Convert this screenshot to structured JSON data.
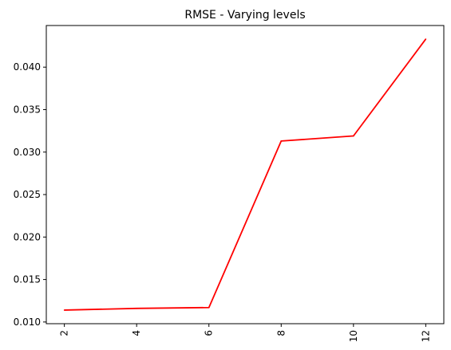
{
  "chart_data": {
    "type": "line",
    "title": "RMSE - Varying levels",
    "xlabel": "",
    "ylabel": "",
    "x": [
      2,
      4,
      6,
      8,
      10,
      12
    ],
    "series": [
      {
        "values": [
          0.0114,
          0.0116,
          0.0117,
          0.0313,
          0.0319,
          0.0433
        ],
        "color": "#ff0000"
      }
    ],
    "xticks": [
      "2",
      "4",
      "6",
      "8",
      "10",
      "12"
    ],
    "yticks": [
      "0.010",
      "0.015",
      "0.020",
      "0.025",
      "0.030",
      "0.035",
      "0.040"
    ],
    "xlim": [
      1.5,
      12.5
    ],
    "ylim": [
      0.0098,
      0.0449
    ],
    "grid": false,
    "legend": "none",
    "xtick_rotation": "vertical"
  }
}
